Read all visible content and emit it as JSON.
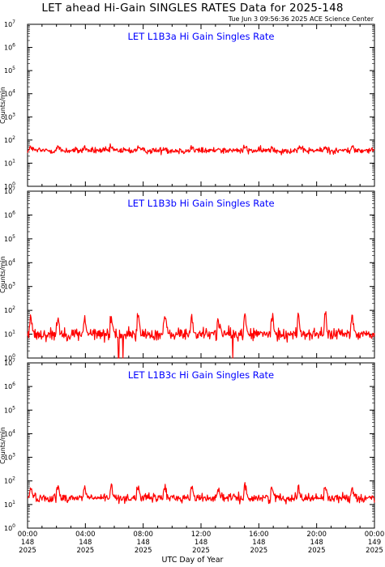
{
  "title": "LET ahead Hi-Gain SINGLES RATES Data for 2025-148",
  "timestamp": "Tue Jun  3 09:56:36 2025 ACE Science Center",
  "xlabel": "UTC Day of Year",
  "colors": {
    "series": "#ff0000",
    "panel_title": "#0000ff",
    "axes": "#000000"
  },
  "chart_data": [
    {
      "type": "line",
      "title": "LET L1B3a Hi Gain Singles Rate",
      "ylabel": "Counts/min",
      "yscale": "log",
      "ylim": [
        1,
        10000000
      ],
      "ytick_labels": [
        "10^0",
        "10^1",
        "10^2",
        "10^3",
        "10^4",
        "10^5",
        "10^6",
        "10^7"
      ],
      "xlim_hours": [
        0,
        24
      ],
      "series": [
        {
          "baseline": 35,
          "noise_decades": 0.07,
          "spike_peak": 50,
          "dropouts": []
        }
      ]
    },
    {
      "type": "line",
      "title": "LET L1B3b Hi Gain Singles Rate",
      "ylabel": "Counts/min",
      "yscale": "log",
      "ylim": [
        1,
        10000000
      ],
      "ytick_labels": [
        "10^0",
        "10^1",
        "10^2",
        "10^3",
        "10^4",
        "10^5",
        "10^6",
        "10^7"
      ],
      "xlim_hours": [
        0,
        24
      ],
      "series": [
        {
          "baseline": 10,
          "noise_decades": 0.13,
          "spike_peak": 50,
          "dropouts": [
            6.3,
            6.6,
            14.2
          ]
        }
      ]
    },
    {
      "type": "line",
      "title": "LET L1B3c Hi Gain Singles Rate",
      "ylabel": "Counts/min",
      "yscale": "log",
      "ylim": [
        1,
        10000000
      ],
      "ytick_labels": [
        "10^0",
        "10^1",
        "10^2",
        "10^3",
        "10^4",
        "10^5",
        "10^6",
        "10^7"
      ],
      "xlim_hours": [
        0,
        24
      ],
      "series": [
        {
          "baseline": 19,
          "noise_decades": 0.09,
          "spike_peak": 55,
          "dropouts": []
        }
      ]
    }
  ],
  "x_ticks": [
    {
      "time": "00:00",
      "doy": "148",
      "year": "2025"
    },
    {
      "time": "04:00",
      "doy": "148",
      "year": "2025"
    },
    {
      "time": "08:00",
      "doy": "148",
      "year": "2025"
    },
    {
      "time": "12:00",
      "doy": "148",
      "year": "2025"
    },
    {
      "time": "16:00",
      "doy": "148",
      "year": "2025"
    },
    {
      "time": "20:00",
      "doy": "148",
      "year": "2025"
    },
    {
      "time": "00:00",
      "doy": "149",
      "year": "2025"
    }
  ],
  "spike_hours": [
    0.2,
    2.05,
    3.9,
    5.75,
    7.6,
    9.45,
    11.3,
    13.15,
    15.0,
    16.85,
    18.7,
    20.55,
    22.4
  ]
}
